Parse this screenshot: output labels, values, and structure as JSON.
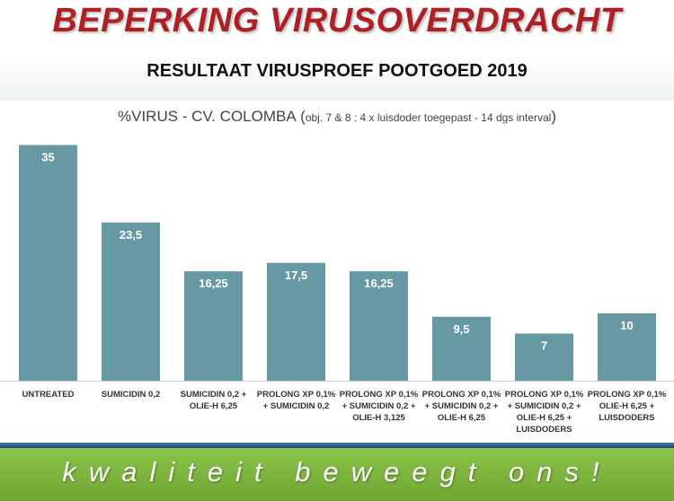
{
  "header": {
    "title": "BEPERKING VIRUSOVERDRACHT",
    "subtitle": "RESULTAAT VIRUSPROEF POOTGOED 2019"
  },
  "chart_data": {
    "type": "bar",
    "title_main": "%VIRUS - CV. COLOMBA",
    "title_paren_open": "(",
    "title_note": "obj. 7 & 8 : 4 x luisdoder toegepast - 14 dgs interval",
    "title_paren_close": ")",
    "categories": [
      [
        "UNTREATED"
      ],
      [
        "SUMICIDIN 0,2"
      ],
      [
        "SUMICIDIN 0,2 +",
        "OLIE-H 6,25"
      ],
      [
        "PROLONG XP 0,1%",
        "+ SUMICIDIN 0,2"
      ],
      [
        "PROLONG XP 0,1%",
        "+ SUMICIDIN 0,2 +",
        "OLIE-H 3,125"
      ],
      [
        "PROLONG XP 0,1%",
        "+ SUMICIDIN 0,2 +",
        "OLIE-H 6,25"
      ],
      [
        "PROLONG XP 0,1%",
        "+ SUMICIDIN 0,2 +",
        "OLIE-H 6,25 +",
        "LUISDODERS"
      ],
      [
        "PROLONG XP 0,1%",
        "OLIE-H 6,25 +",
        "LUISDODERS"
      ]
    ],
    "values": [
      35,
      23.5,
      16.25,
      17.5,
      16.25,
      9.5,
      7,
      10
    ],
    "value_labels": [
      "35",
      "23,5",
      "16,25",
      "17,5",
      "16,25",
      "9,5",
      "7",
      "10"
    ],
    "ylim": [
      0,
      40
    ],
    "bar_color": "#6799a4",
    "grid": false,
    "legend": false
  },
  "footer": {
    "slogan": "kwaliteit beweegt ons!"
  }
}
